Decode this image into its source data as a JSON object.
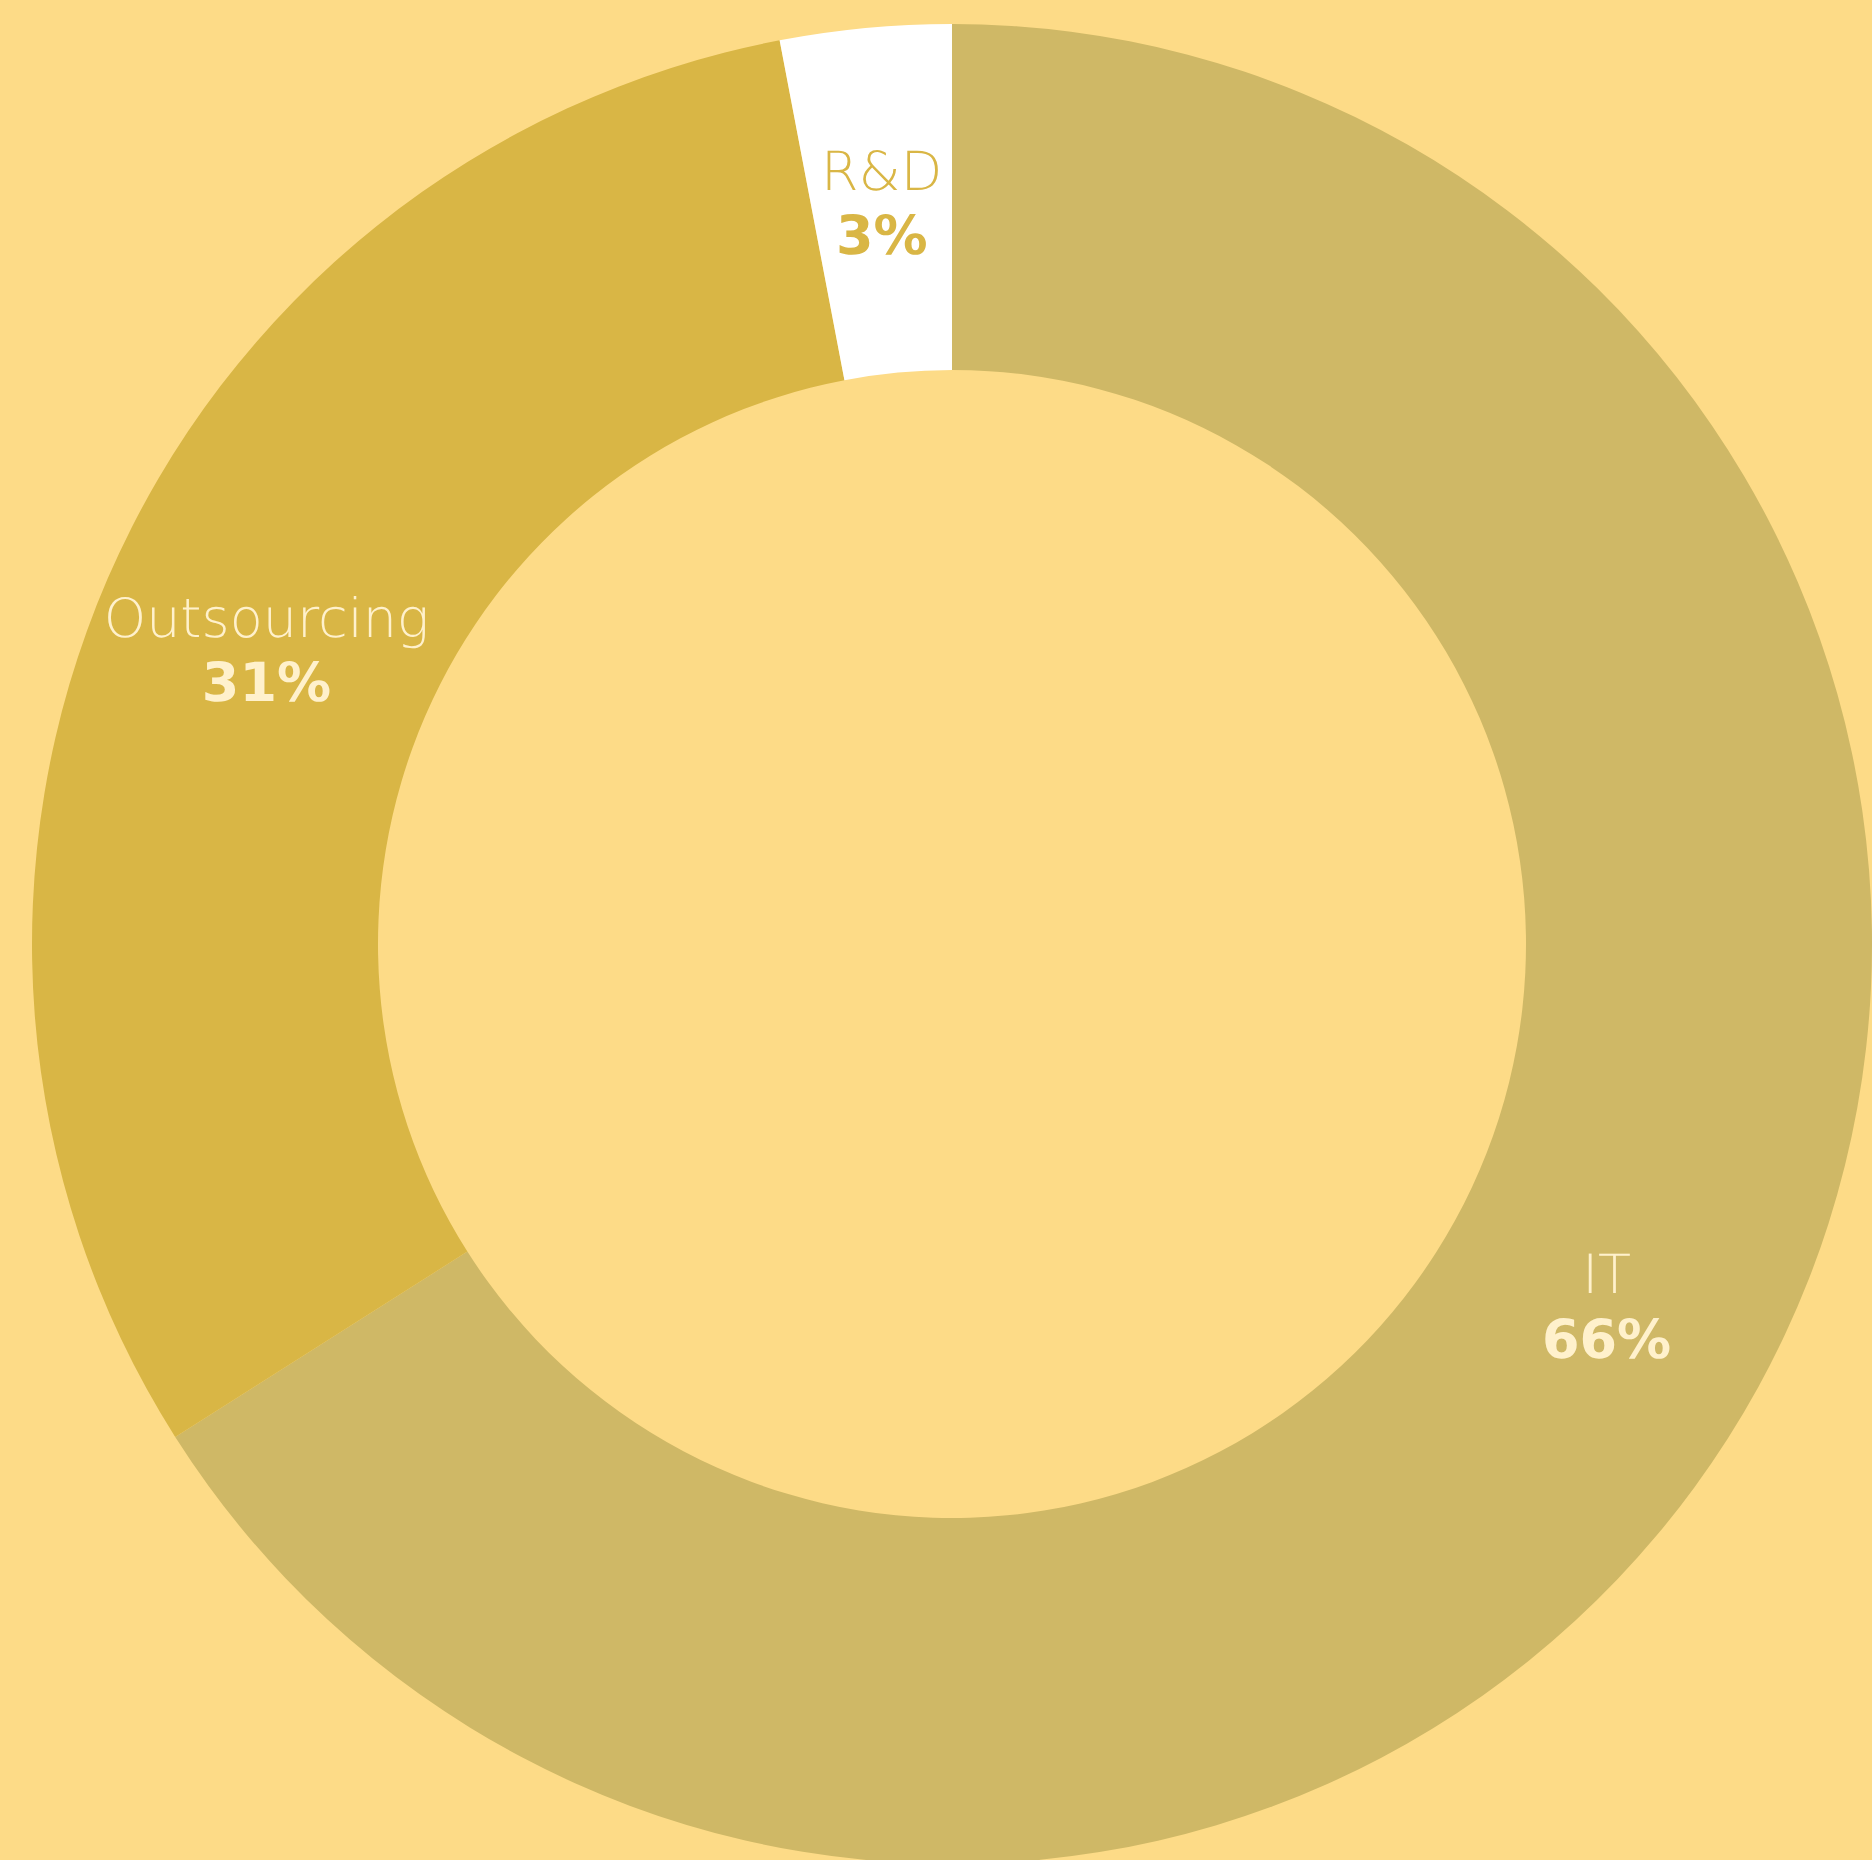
{
  "chart_data": {
    "type": "donut",
    "categories": [
      "IT",
      "Outsourcing",
      "R&D"
    ],
    "values": [
      66,
      31,
      3
    ],
    "colors": [
      "#cfb866",
      "#d9b645",
      "#ffffff"
    ],
    "value_labels": [
      "66%",
      "31%",
      "3%"
    ]
  }
}
